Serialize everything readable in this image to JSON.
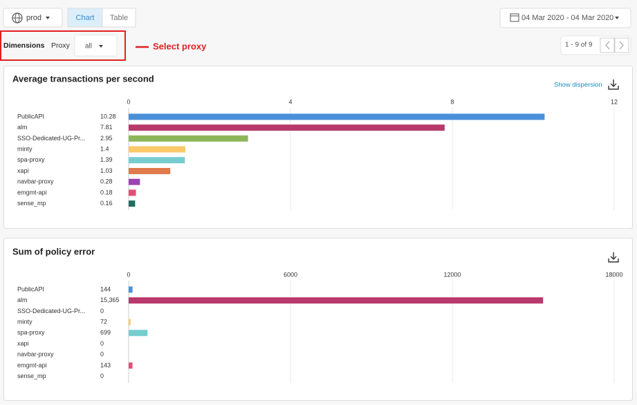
{
  "toolbar": {
    "env": "prod",
    "tabs": [
      "Chart",
      "Table"
    ],
    "date_range": "04 Mar 2020 - 04 Mar 2020"
  },
  "filters": {
    "dimensions": "Dimensions",
    "proxy_label": "Proxy",
    "proxy_value": "all",
    "annotation": "Select proxy",
    "pagination": "1 - 9 of 9"
  },
  "charts": [
    {
      "type": "bar",
      "title": "Average transactions per second",
      "action": "Show dispersion",
      "categories": [
        "PublicAPI",
        "alm",
        "SSO-Dedicated-UG-Pr...",
        "minty",
        "spa-proxy",
        "xapi",
        "navbar-proxy",
        "emgmt-api",
        "sense_mp"
      ],
      "values": [
        10.28,
        7.81,
        2.95,
        1.4,
        1.39,
        1.03,
        0.28,
        0.18,
        0.16
      ],
      "colors": [
        "#4a90d9",
        "#b8396b",
        "#8db65a",
        "#f9c96a",
        "#76cdd0",
        "#e07b4e",
        "#9b44b3",
        "#e0507a",
        "#1e6e62"
      ],
      "xlim": [
        0,
        12
      ],
      "xticks": [
        0,
        4,
        8,
        12
      ],
      "grid": true
    },
    {
      "type": "bar",
      "title": "Sum of policy error",
      "categories": [
        "PublicAPI",
        "alm",
        "SSO-Dedicated-UG-Pr...",
        "minty",
        "spa-proxy",
        "xapi",
        "navbar-proxy",
        "emgmt-api",
        "sense_mp"
      ],
      "values": [
        144,
        15365,
        0,
        72,
        699,
        0,
        0,
        143,
        0
      ],
      "value_labels": [
        "144",
        "15,365",
        "0",
        "72",
        "699",
        "0",
        "0",
        "143",
        "0"
      ],
      "colors": [
        "#4a90d9",
        "#b8396b",
        "#8db65a",
        "#f9c96a",
        "#76cdd0",
        "#e07b4e",
        "#9b44b3",
        "#e0507a",
        "#1e6e62"
      ],
      "xlim": [
        0,
        18000
      ],
      "xticks": [
        0,
        6000,
        12000,
        18000
      ],
      "grid": true
    }
  ]
}
